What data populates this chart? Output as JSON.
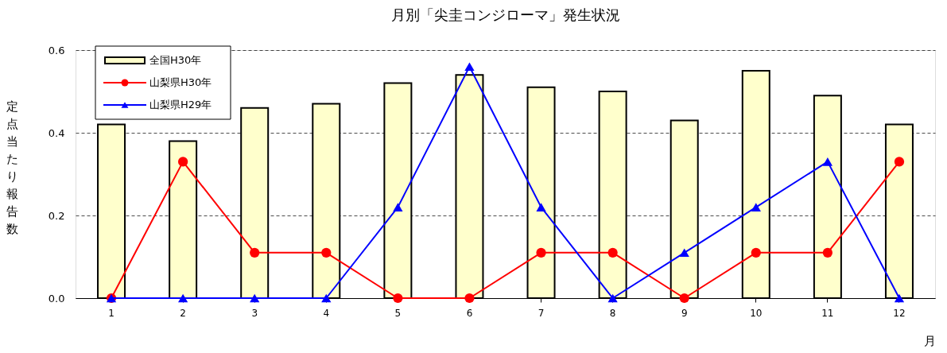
{
  "chart_data": {
    "type": "bar",
    "title": "月別「尖圭コンジローマ」発生状況",
    "xlabel": "月",
    "ylabel": "定点当たり報告数",
    "categories": [
      "1",
      "2",
      "3",
      "4",
      "5",
      "6",
      "7",
      "8",
      "9",
      "10",
      "11",
      "12"
    ],
    "series": [
      {
        "name": "全国H30年",
        "color": "#ffffcc",
        "values": [
          0.42,
          0.38,
          0.46,
          0.47,
          0.52,
          0.54,
          0.51,
          0.5,
          0.43,
          0.55,
          0.49,
          0.42
        ]
      },
      {
        "name": "山梨県H30年",
        "type": "line",
        "marker": "circle",
        "color": "#ff0000",
        "values": [
          0,
          0.33,
          0.11,
          0.11,
          0,
          0,
          0.11,
          0.11,
          0,
          0.11,
          0.11,
          0.33
        ]
      },
      {
        "name": "山梨県H29年",
        "type": "line",
        "marker": "triangle",
        "color": "#0000ff",
        "values": [
          0,
          0,
          0,
          0,
          0.22,
          0.56,
          0.22,
          0,
          0.11,
          0.22,
          0.33,
          0
        ]
      }
    ],
    "ylim": [
      0,
      0.6
    ],
    "yticks": [
      {
        "value": 0,
        "label": "0.0"
      },
      {
        "value": 0.2,
        "label": "0.2"
      },
      {
        "value": 0.4,
        "label": "0.4"
      },
      {
        "value": 0.6,
        "label": "0.6"
      }
    ],
    "grid": "y",
    "legend": "top left"
  }
}
